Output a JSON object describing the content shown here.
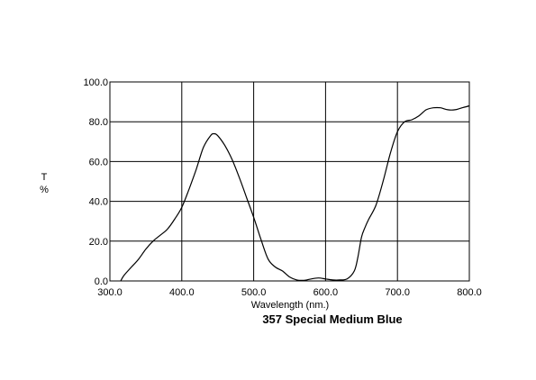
{
  "chart_data": {
    "type": "line",
    "title": "357 Special Medium Blue",
    "xlabel": "Wavelength (nm.)",
    "ylabel_top": "T",
    "ylabel_bottom": "%",
    "xlim": [
      300,
      800
    ],
    "ylim": [
      0,
      100
    ],
    "xticks": [
      "300.0",
      "400.0",
      "500.0",
      "600.0",
      "700.0",
      "800.0"
    ],
    "yticks": [
      "0.0",
      "20.0",
      "40.0",
      "60.0",
      "80.0",
      "100.0"
    ],
    "grid": true,
    "colors": {
      "line": "#000000",
      "grid": "#000000",
      "background": "#ffffff"
    },
    "series": [
      {
        "x": [
          315,
          320,
          330,
          340,
          350,
          360,
          370,
          380,
          390,
          400,
          410,
          420,
          430,
          440,
          445,
          450,
          460,
          470,
          480,
          490,
          500,
          510,
          520,
          530,
          540,
          550,
          560,
          570,
          580,
          590,
          600,
          610,
          620,
          630,
          640,
          645,
          650,
          655,
          660,
          670,
          680,
          690,
          700,
          710,
          720,
          730,
          740,
          750,
          760,
          770,
          780,
          790,
          800
        ],
        "y": [
          0,
          3,
          7,
          11,
          16,
          20,
          23,
          26,
          31,
          37,
          46,
          56,
          67,
          73,
          74,
          73,
          68,
          61,
          52,
          42,
          32,
          21,
          11,
          7,
          5,
          2,
          0.5,
          0.3,
          1,
          1.5,
          1,
          0.5,
          0.5,
          1,
          5,
          12,
          22,
          27,
          31,
          38,
          50,
          64,
          75,
          80,
          81,
          83,
          86,
          87,
          87,
          86,
          86,
          87,
          88
        ]
      }
    ]
  }
}
